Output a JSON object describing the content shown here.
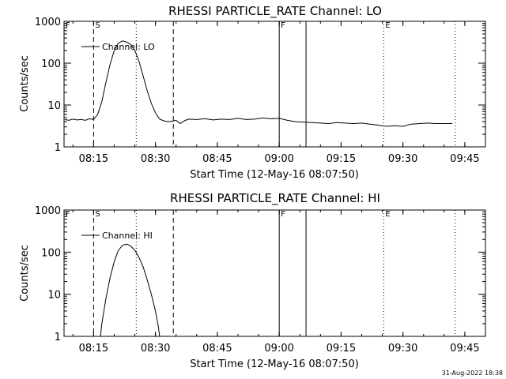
{
  "footer": {
    "timestamp": "31-Aug-2022 18:38"
  },
  "chart_data": [
    {
      "type": "line",
      "title": "RHESSI PARTICLE_RATE Channel: LO",
      "xlabel": "Start Time (12-May-16 08:07:50)",
      "ylabel": "Counts/sec",
      "yscale": "log",
      "xlim": [
        "08:07:50",
        "09:50:00"
      ],
      "ylim": [
        1,
        1000
      ],
      "x_ticks": [
        "08:15",
        "08:30",
        "08:45",
        "09:00",
        "09:15",
        "09:30",
        "09:45"
      ],
      "y_ticks": [
        "1",
        "10",
        "100",
        "1000"
      ],
      "legend": {
        "label": "Channel: LO",
        "position": "top-left"
      },
      "markers": [
        {
          "time": "08:07:50",
          "style": "dotted",
          "label": "F"
        },
        {
          "time": "08:15:00",
          "style": "dashed",
          "label": "S"
        },
        {
          "time": "08:25:20",
          "style": "dotted",
          "label": ""
        },
        {
          "time": "08:34:20",
          "style": "dashed",
          "label": ""
        },
        {
          "time": "09:00:00",
          "style": "solid",
          "label": "F"
        },
        {
          "time": "09:06:30",
          "style": "solid",
          "label": ""
        },
        {
          "time": "09:25:20",
          "style": "dotted",
          "label": "E"
        },
        {
          "time": "09:42:40",
          "style": "dotted",
          "label": ""
        }
      ],
      "series": [
        {
          "x": [
            "08:08:00",
            "08:09:00",
            "08:10:00",
            "08:11:00",
            "08:12:00",
            "08:13:00",
            "08:14:00",
            "08:15:00",
            "08:16:00",
            "08:17:00",
            "08:18:00",
            "08:19:00",
            "08:20:00",
            "08:21:00",
            "08:22:00",
            "08:23:00",
            "08:24:00",
            "08:25:00",
            "08:26:00",
            "08:27:00",
            "08:28:00",
            "08:29:00",
            "08:30:00",
            "08:31:00",
            "08:32:00",
            "08:33:00",
            "08:34:00",
            "08:35:00",
            "08:36:00",
            "08:37:00",
            "08:38:00",
            "08:40:00",
            "08:42:00",
            "08:44:00",
            "08:46:00",
            "08:48:00",
            "08:50:00",
            "08:52:00",
            "08:54:00",
            "08:56:00",
            "08:58:00",
            "09:00:00",
            "09:02:00",
            "09:04:00",
            "09:06:00",
            "09:08:00",
            "09:10:00",
            "09:12:00",
            "09:14:00",
            "09:16:00",
            "09:18:00",
            "09:20:00",
            "09:22:00",
            "09:24:00",
            "09:26:00",
            "09:28:00",
            "09:30:00",
            "09:32:00",
            "09:34:00",
            "09:36:00",
            "09:38:00",
            "09:40:00",
            "09:42:00"
          ],
          "values": [
            4.5,
            4.3,
            4.6,
            4.4,
            4.5,
            4.3,
            4.7,
            4.5,
            6,
            12,
            35,
            95,
            200,
            300,
            340,
            320,
            280,
            200,
            110,
            50,
            22,
            11,
            6.5,
            4.6,
            4.2,
            4.0,
            4.1,
            4.3,
            3.6,
            4.2,
            4.6,
            4.5,
            4.7,
            4.4,
            4.6,
            4.5,
            4.8,
            4.5,
            4.6,
            4.9,
            4.7,
            4.8,
            4.3,
            4.0,
            3.9,
            3.8,
            3.7,
            3.6,
            3.8,
            3.7,
            3.6,
            3.7,
            3.5,
            3.3,
            3.1,
            3.2,
            3.1,
            3.5,
            3.6,
            3.7,
            3.6,
            3.6,
            3.6
          ]
        }
      ]
    },
    {
      "type": "line",
      "title": "RHESSI PARTICLE_RATE Channel: HI",
      "xlabel": "Start Time (12-May-16 08:07:50)",
      "ylabel": "Counts/sec",
      "yscale": "log",
      "xlim": [
        "08:07:50",
        "09:50:00"
      ],
      "ylim": [
        1,
        1000
      ],
      "x_ticks": [
        "08:15",
        "08:30",
        "08:45",
        "09:00",
        "09:15",
        "09:30",
        "09:45"
      ],
      "y_ticks": [
        "1",
        "10",
        "100",
        "1000"
      ],
      "legend": {
        "label": "Channel: HI",
        "position": "top-left"
      },
      "markers": [
        {
          "time": "08:07:50",
          "style": "dotted",
          "label": "F"
        },
        {
          "time": "08:15:00",
          "style": "dashed",
          "label": "S"
        },
        {
          "time": "08:25:20",
          "style": "dotted",
          "label": ""
        },
        {
          "time": "08:34:20",
          "style": "dashed",
          "label": ""
        },
        {
          "time": "09:00:00",
          "style": "solid",
          "label": "F"
        },
        {
          "time": "09:06:30",
          "style": "solid",
          "label": ""
        },
        {
          "time": "09:25:20",
          "style": "dotted",
          "label": "E"
        },
        {
          "time": "09:42:40",
          "style": "dotted",
          "label": ""
        }
      ],
      "series": [
        {
          "x": [
            "08:16:40",
            "08:17:00",
            "08:18:00",
            "08:19:00",
            "08:20:00",
            "08:21:00",
            "08:22:00",
            "08:23:00",
            "08:24:00",
            "08:25:00",
            "08:26:00",
            "08:27:00",
            "08:28:00",
            "08:29:00",
            "08:30:00",
            "08:30:40",
            "08:31:00"
          ],
          "values": [
            1,
            2,
            8,
            25,
            60,
            110,
            145,
            155,
            140,
            110,
            75,
            45,
            22,
            10,
            4,
            1.8,
            1
          ]
        }
      ]
    }
  ]
}
